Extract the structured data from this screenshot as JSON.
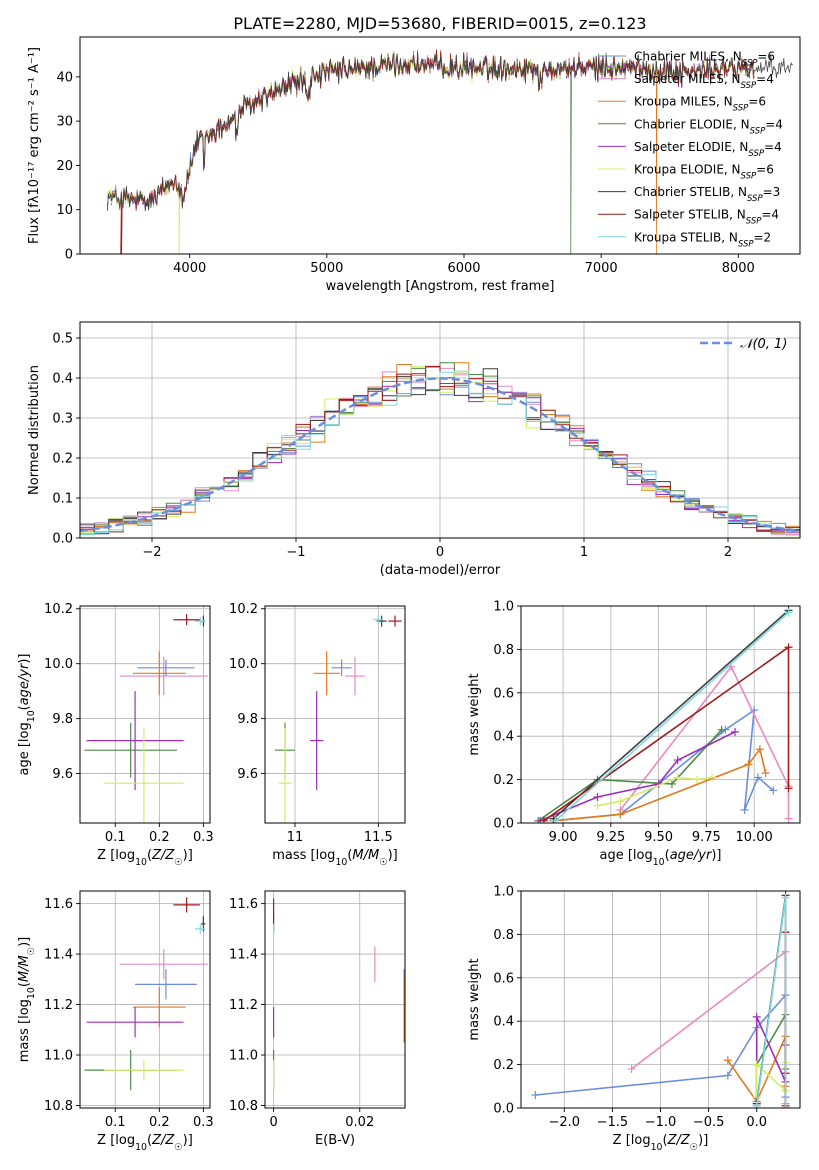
{
  "figure": {
    "title": "PLATE=2280, MJD=53680, FIBERID=0015, z=0.123"
  },
  "colors": {
    "Chabrier MILES": "#6a8fdc",
    "Salpeter MILES": "#e78ac3",
    "Kroupa MILES": "#e07b1f",
    "Chabrier ELODIE": "#4f8a4a",
    "Salpeter ELODIE": "#9b2fb8",
    "Kroupa ELODIE": "#d4ec63",
    "Chabrier STELIB": "#3f3f3f",
    "Salpeter STELIB": "#a01a1a",
    "Kroupa STELIB": "#7fd7df",
    "normal_curve": "#6a8fdc",
    "grid": "#b0b0b0"
  },
  "chart_data": [
    {
      "id": "spectrum",
      "type": "line",
      "xlabel": "wavelength [Angstrom, rest frame]",
      "ylabel": "Flux [fλ10⁻¹⁷ erg cm⁻² s⁻¹ A⁻¹]",
      "xlim": [
        3200,
        8450
      ],
      "ylim": [
        0,
        49
      ],
      "xticks": [
        4000,
        5000,
        6000,
        7000,
        8000
      ],
      "yticks": [
        0,
        10,
        20,
        30,
        40
      ],
      "grid": false,
      "legend_position": "top-right",
      "legend": [
        {
          "main": "Chabrier MILES, N",
          "sub": "SSP",
          "tail": "=6"
        },
        {
          "main": "Salpeter MILES, N",
          "sub": "SSP",
          "tail": "=4"
        },
        {
          "main": "Kroupa MILES, N",
          "sub": "SSP",
          "tail": "=6"
        },
        {
          "main": "Chabrier ELODIE, N",
          "sub": "SSP",
          "tail": "=4"
        },
        {
          "main": "Salpeter ELODIE, N",
          "sub": "SSP",
          "tail": "=4"
        },
        {
          "main": "Kroupa ELODIE, N",
          "sub": "SSP",
          "tail": "=6"
        },
        {
          "main": "Chabrier STELIB, N",
          "sub": "SSP",
          "tail": "=3"
        },
        {
          "main": "Salpeter STELIB, N",
          "sub": "SSP",
          "tail": "=4"
        },
        {
          "main": "Kroupa STELIB, N",
          "sub": "SSP",
          "tail": "=2"
        }
      ],
      "continuum_x": [
        3400,
        3700,
        3900,
        3950,
        4050,
        4250,
        4400,
        4700,
        5000,
        5300,
        5600,
        6000,
        6400,
        6800,
        7200,
        7600,
        8000,
        8450
      ],
      "continuum_y": [
        13,
        11.5,
        17,
        13,
        25,
        29,
        33,
        38,
        41,
        42,
        43,
        42,
        42,
        42,
        42,
        41,
        42,
        42
      ],
      "drops": [
        {
          "series": "Salpeter STELIB",
          "x": 3500
        },
        {
          "series": "Kroupa ELODIE",
          "x": 3920
        },
        {
          "series": "Chabrier ELODIE",
          "x": 6780
        },
        {
          "series": "Kroupa MILES",
          "x": 7400
        }
      ]
    },
    {
      "id": "residuals",
      "type": "line",
      "xlabel": "(data-model)/error",
      "ylabel": "Normed distribution",
      "xlim": [
        -2.5,
        2.5
      ],
      "ylim": [
        0,
        0.54
      ],
      "xticks": [
        -2,
        -1,
        0,
        1,
        2
      ],
      "yticks": [
        0.0,
        0.1,
        0.2,
        0.3,
        0.4,
        0.5
      ],
      "grid": true,
      "legend_position": "top-right",
      "legend_label": "𝒩(0, 1)",
      "normal": {
        "mean": 0,
        "sigma": 1
      },
      "bin_width": 0.1
    },
    {
      "id": "age_vs_Z",
      "type": "scatter",
      "xlabel": "Z [log10(Z/Z☉)]",
      "ylabel": "age  [log10(age/yr)]",
      "xlim": [
        0.02,
        0.315
      ],
      "ylim": [
        9.42,
        10.21
      ],
      "xticks": [
        0.1,
        0.2,
        0.3
      ],
      "yticks": [
        9.6,
        9.8,
        10.0,
        10.2
      ],
      "grid": true,
      "points": [
        {
          "series": "Chabrier MILES",
          "x": 0.215,
          "y": 9.985,
          "xerr": 0.065,
          "yerr": 0.03
        },
        {
          "series": "Salpeter MILES",
          "x": 0.21,
          "y": 9.955,
          "xerr": 0.1,
          "yerr": 0.07
        },
        {
          "series": "Kroupa MILES",
          "x": 0.2,
          "y": 9.965,
          "xerr": 0.06,
          "yerr": 0.08
        },
        {
          "series": "Chabrier ELODIE",
          "x": 0.135,
          "y": 9.685,
          "xerr": 0.105,
          "yerr": 0.1
        },
        {
          "series": "Salpeter ELODIE",
          "x": 0.145,
          "y": 9.72,
          "xerr": 0.11,
          "yerr": 0.18
        },
        {
          "series": "Kroupa ELODIE",
          "x": 0.165,
          "y": 9.565,
          "xerr": 0.09,
          "yerr": 0.2
        },
        {
          "series": "Chabrier STELIB",
          "x": 0.3,
          "y": 10.155,
          "xerr": 0.005,
          "yerr": 0.02
        },
        {
          "series": "Salpeter STELIB",
          "x": 0.262,
          "y": 10.16,
          "xerr": 0.03,
          "yerr": 0.02
        },
        {
          "series": "Kroupa STELIB",
          "x": 0.293,
          "y": 10.155,
          "xerr": 0.012,
          "yerr": 0.015
        }
      ]
    },
    {
      "id": "age_vs_mass",
      "type": "scatter",
      "xlabel": "mass [log10(M/M☉)]",
      "ylabel": "",
      "xlim": [
        10.82,
        11.66
      ],
      "ylim": [
        9.42,
        10.21
      ],
      "xticks": [
        11.0,
        11.5
      ],
      "yticks": [
        9.6,
        9.8,
        10.0,
        10.2
      ],
      "grid": true,
      "points": [
        {
          "series": "Chabrier MILES",
          "x": 11.28,
          "y": 9.985,
          "xerr": 0.06,
          "yerr": 0.03
        },
        {
          "series": "Salpeter MILES",
          "x": 11.36,
          "y": 9.955,
          "xerr": 0.06,
          "yerr": 0.07
        },
        {
          "series": "Kroupa MILES",
          "x": 11.19,
          "y": 9.965,
          "xerr": 0.08,
          "yerr": 0.08
        },
        {
          "series": "Chabrier ELODIE",
          "x": 10.94,
          "y": 9.685,
          "xerr": 0.06,
          "yerr": 0.1
        },
        {
          "series": "Salpeter ELODIE",
          "x": 11.13,
          "y": 9.72,
          "xerr": 0.04,
          "yerr": 0.18
        },
        {
          "series": "Kroupa ELODIE",
          "x": 10.94,
          "y": 9.565,
          "xerr": 0.04,
          "yerr": 0.2
        },
        {
          "series": "Chabrier STELIB",
          "x": 11.52,
          "y": 10.155,
          "xerr": 0.03,
          "yerr": 0.02
        },
        {
          "series": "Salpeter STELIB",
          "x": 11.6,
          "y": 10.155,
          "xerr": 0.04,
          "yerr": 0.02
        },
        {
          "series": "Kroupa STELIB",
          "x": 11.5,
          "y": 10.16,
          "xerr": 0.03,
          "yerr": 0.015
        }
      ]
    },
    {
      "id": "mass_weight_vs_age",
      "type": "line",
      "xlabel": "age  [log10(age/yr)]",
      "ylabel": "mass weight",
      "xlim": [
        8.78,
        10.24
      ],
      "ylim": [
        0,
        1.0
      ],
      "xticks": [
        9.0,
        9.25,
        9.5,
        9.75,
        10.0
      ],
      "yticks": [
        0.0,
        0.2,
        0.4,
        0.6,
        0.8,
        1.0
      ],
      "grid": true,
      "series": [
        {
          "name": "Chabrier MILES",
          "x": [
            8.95,
            9.3,
            9.5,
            9.85,
            10.0,
            9.95,
            10.02,
            10.1
          ],
          "y": [
            0.01,
            0.04,
            0.18,
            0.43,
            0.52,
            0.06,
            0.21,
            0.15
          ]
        },
        {
          "name": "Salpeter MILES",
          "x": [
            9.3,
            9.88,
            10.18,
            10.18
          ],
          "y": [
            0.06,
            0.72,
            0.17,
            0.02
          ]
        },
        {
          "name": "Kroupa MILES",
          "x": [
            8.95,
            9.3,
            9.97,
            10.03,
            10.06
          ],
          "y": [
            0.01,
            0.04,
            0.27,
            0.34,
            0.23
          ]
        },
        {
          "name": "Chabrier ELODIE",
          "x": [
            8.87,
            9.18,
            9.57,
            9.83
          ],
          "y": [
            0.01,
            0.2,
            0.18,
            0.43
          ]
        },
        {
          "name": "Salpeter ELODIE",
          "x": [
            8.88,
            9.18,
            9.5,
            9.6,
            9.9
          ],
          "y": [
            0.01,
            0.12,
            0.18,
            0.29,
            0.42
          ]
        },
        {
          "name": "Kroupa ELODIE",
          "x": [
            9.18,
            9.3,
            9.6,
            9.7,
            9.78
          ],
          "y": [
            0.08,
            0.1,
            0.21,
            0.2,
            0.21
          ]
        },
        {
          "name": "Chabrier STELIB",
          "x": [
            8.95,
            10.18
          ],
          "y": [
            0.02,
            0.98
          ]
        },
        {
          "name": "Salpeter STELIB",
          "x": [
            8.9,
            10.18,
            10.18
          ],
          "y": [
            0.01,
            0.81,
            0.16
          ]
        },
        {
          "name": "Kroupa STELIB",
          "x": [
            8.96,
            10.18
          ],
          "y": [
            0.01,
            0.97
          ]
        }
      ]
    },
    {
      "id": "mass_vs_Z",
      "type": "scatter",
      "xlabel": "Z [log10(Z/Z☉)]",
      "ylabel": "mass [log10(M/M☉)]",
      "xlim": [
        0.02,
        0.315
      ],
      "ylim": [
        10.79,
        11.65
      ],
      "xticks": [
        0.1,
        0.2,
        0.3
      ],
      "yticks": [
        10.8,
        11.0,
        11.2,
        11.4,
        11.6
      ],
      "grid": true,
      "points": [
        {
          "series": "Chabrier MILES",
          "x": 0.215,
          "y": 11.28,
          "xerr": 0.07,
          "yerr": 0.06
        },
        {
          "series": "Salpeter MILES",
          "x": 0.21,
          "y": 11.36,
          "xerr": 0.1,
          "yerr": 0.06
        },
        {
          "series": "Kroupa MILES",
          "x": 0.2,
          "y": 11.19,
          "xerr": 0.06,
          "yerr": 0.08
        },
        {
          "series": "Chabrier ELODIE",
          "x": 0.135,
          "y": 10.94,
          "xerr": 0.105,
          "yerr": 0.08
        },
        {
          "series": "Salpeter ELODIE",
          "x": 0.145,
          "y": 11.13,
          "xerr": 0.11,
          "yerr": 0.06
        },
        {
          "series": "Kroupa ELODIE",
          "x": 0.165,
          "y": 10.94,
          "xerr": 0.09,
          "yerr": 0.04
        },
        {
          "series": "Chabrier STELIB",
          "x": 0.3,
          "y": 11.52,
          "xerr": 0.005,
          "yerr": 0.03
        },
        {
          "series": "Salpeter STELIB",
          "x": 0.262,
          "y": 11.595,
          "xerr": 0.03,
          "yerr": 0.03
        },
        {
          "series": "Kroupa STELIB",
          "x": 0.293,
          "y": 11.5,
          "xerr": 0.012,
          "yerr": 0.02
        }
      ]
    },
    {
      "id": "mass_vs_ebv",
      "type": "scatter",
      "xlabel": "E(B-V)",
      "ylabel": "",
      "xlim": [
        -0.002,
        0.0305
      ],
      "ylim": [
        10.79,
        11.65
      ],
      "xticks": [
        0.0,
        0.02
      ],
      "yticks": [
        10.8,
        11.0,
        11.2,
        11.4,
        11.6
      ],
      "grid": true,
      "points": [
        {
          "series": "Chabrier MILES",
          "x": 0.0303,
          "y": 11.28,
          "xerr": 0,
          "yerr": 0.06
        },
        {
          "series": "Salpeter MILES",
          "x": 0.0235,
          "y": 11.36,
          "xerr": 0,
          "yerr": 0.07
        },
        {
          "series": "Kroupa MILES",
          "x": 0.0303,
          "y": 11.18,
          "xerr": 0,
          "yerr": 0.13
        },
        {
          "series": "Chabrier ELODIE",
          "x": 0.0,
          "y": 10.94,
          "xerr": 0,
          "yerr": 0.08
        },
        {
          "series": "Salpeter ELODIE",
          "x": 0.0,
          "y": 11.13,
          "xerr": 0,
          "yerr": 0.06
        },
        {
          "series": "Kroupa ELODIE",
          "x": 0.0,
          "y": 10.92,
          "xerr": 0,
          "yerr": 0.06
        },
        {
          "series": "Chabrier STELIB",
          "x": 0.0,
          "y": 11.52,
          "xerr": 0,
          "yerr": 0.03
        },
        {
          "series": "Salpeter STELIB",
          "x": 0.0,
          "y": 11.58,
          "xerr": 0,
          "yerr": 0.04
        },
        {
          "series": "Kroupa STELIB",
          "x": 0.0,
          "y": 11.5,
          "xerr": 0,
          "yerr": 0.02
        }
      ]
    },
    {
      "id": "mass_weight_vs_Z",
      "type": "line",
      "xlabel": "Z [log10(Z/Z☉)]",
      "ylabel": "mass weight",
      "xlim": [
        -2.45,
        0.45
      ],
      "ylim": [
        0,
        1.0
      ],
      "xticks": [
        -2.0,
        -1.5,
        -1.0,
        -0.5,
        0.0
      ],
      "yticks": [
        0.0,
        0.2,
        0.4,
        0.6,
        0.8,
        1.0
      ],
      "grid": true,
      "series": [
        {
          "name": "Chabrier MILES",
          "x": [
            -2.3,
            -0.3,
            0.0,
            0.3,
            0.3
          ],
          "y": [
            0.06,
            0.15,
            0.37,
            0.52,
            0.05
          ]
        },
        {
          "name": "Salpeter MILES",
          "x": [
            -1.3,
            0.3,
            0.3
          ],
          "y": [
            0.18,
            0.72,
            0.02
          ]
        },
        {
          "name": "Kroupa MILES",
          "x": [
            -0.3,
            0.0,
            0.3,
            0.3
          ],
          "y": [
            0.22,
            0.03,
            0.33,
            0.1
          ]
        },
        {
          "name": "Chabrier ELODIE",
          "x": [
            0.0,
            0.0,
            0.3,
            0.3
          ],
          "y": [
            0.02,
            0.2,
            0.43,
            0.18
          ]
        },
        {
          "name": "Salpeter ELODIE",
          "x": [
            0.0,
            0.0,
            0.3,
            0.3
          ],
          "y": [
            0.01,
            0.42,
            0.12,
            0.29
          ]
        },
        {
          "name": "Kroupa ELODIE",
          "x": [
            0.0,
            0.0,
            0.3,
            0.3
          ],
          "y": [
            0.05,
            0.2,
            0.08,
            0.21
          ]
        },
        {
          "name": "Chabrier STELIB",
          "x": [
            0.0,
            0.3,
            0.3
          ],
          "y": [
            0.02,
            0.98,
            0.0
          ]
        },
        {
          "name": "Salpeter STELIB",
          "x": [
            0.3,
            0.3,
            0.3
          ],
          "y": [
            0.01,
            0.81,
            0.16
          ]
        },
        {
          "name": "Kroupa STELIB",
          "x": [
            0.0,
            0.3,
            0.3
          ],
          "y": [
            0.01,
            0.97,
            0.0
          ]
        }
      ]
    }
  ]
}
